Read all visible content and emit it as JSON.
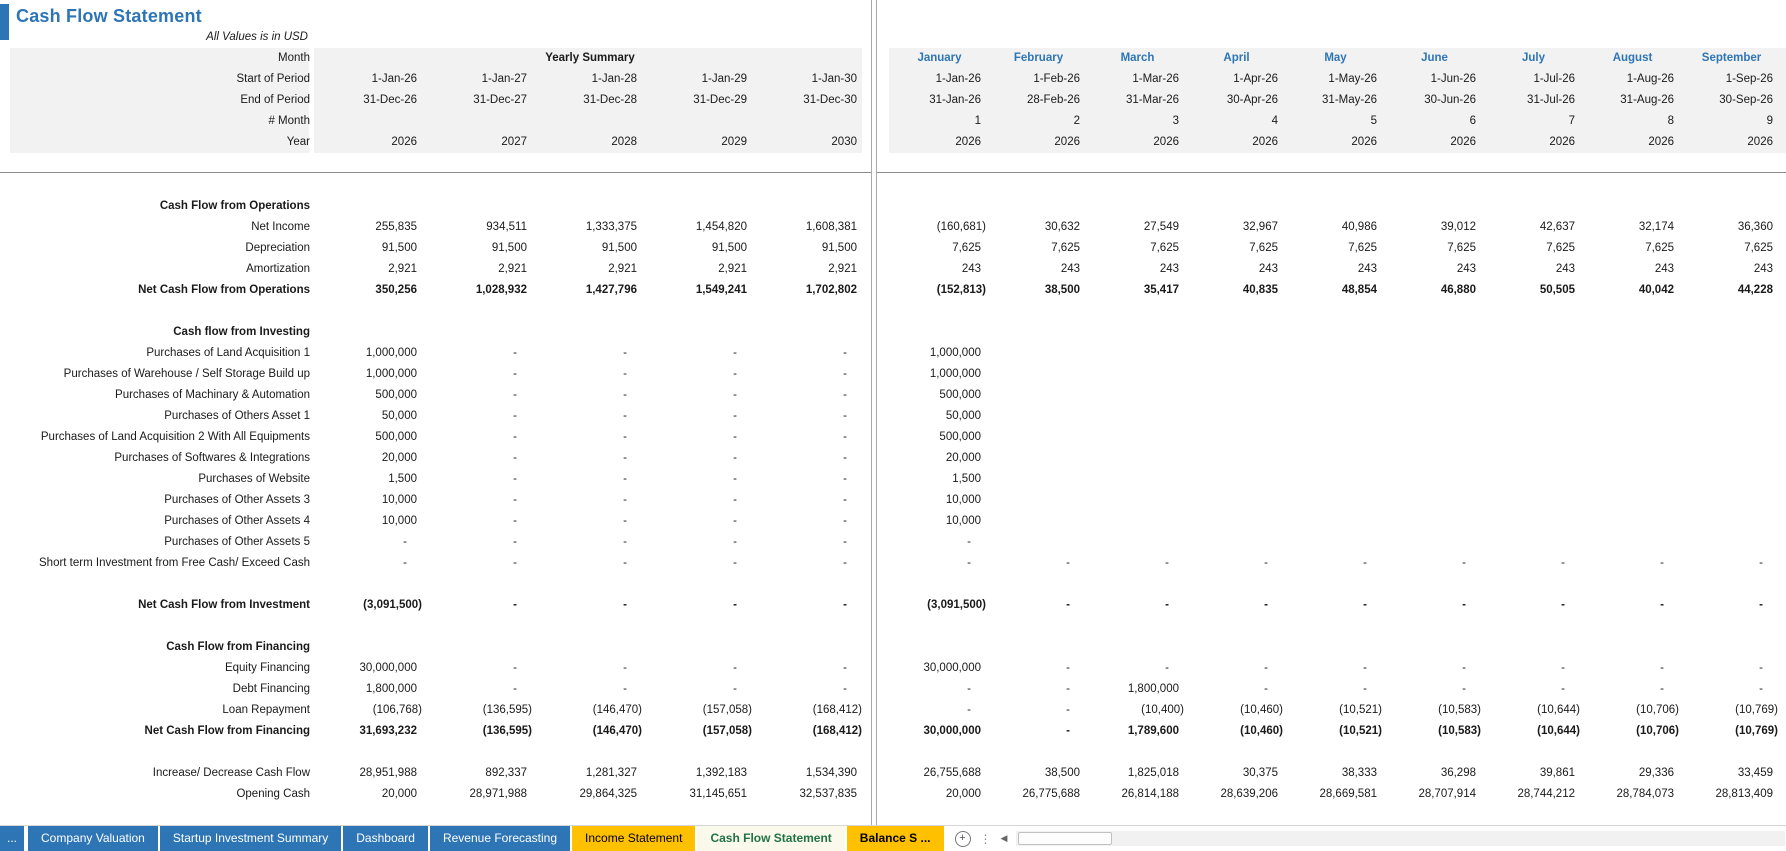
{
  "title": "Cash Flow Statement",
  "subtitle": "All Values is in USD",
  "colors": {
    "accent_blue": "#2E75B6",
    "tab_yellow": "#FFC000",
    "active_tab_text": "#217346",
    "header_band": "#F2F2F2",
    "pane_separator": "#ABABAB"
  },
  "header": {
    "row_labels": [
      "Month",
      "Start of Period",
      "End of Period",
      "# Month",
      "Year"
    ],
    "yearly": {
      "group_label": "Yearly Summary",
      "start": [
        "1-Jan-26",
        "1-Jan-27",
        "1-Jan-28",
        "1-Jan-29",
        "1-Jan-30"
      ],
      "end": [
        "31-Dec-26",
        "31-Dec-27",
        "31-Dec-28",
        "31-Dec-29",
        "31-Dec-30"
      ],
      "num": [
        "",
        "",
        "",
        "",
        ""
      ],
      "year": [
        "2026",
        "2027",
        "2028",
        "2029",
        "2030"
      ]
    },
    "monthly": {
      "months": [
        "January",
        "February",
        "March",
        "April",
        "May",
        "June",
        "July",
        "August",
        "September"
      ],
      "start": [
        "1-Jan-26",
        "1-Feb-26",
        "1-Mar-26",
        "1-Apr-26",
        "1-May-26",
        "1-Jun-26",
        "1-Jul-26",
        "1-Aug-26",
        "1-Sep-26"
      ],
      "end": [
        "31-Jan-26",
        "28-Feb-26",
        "31-Mar-26",
        "30-Apr-26",
        "31-May-26",
        "30-Jun-26",
        "31-Jul-26",
        "31-Aug-26",
        "30-Sep-26"
      ],
      "num": [
        "1",
        "2",
        "3",
        "4",
        "5",
        "6",
        "7",
        "8",
        "9"
      ],
      "year": [
        "2026",
        "2026",
        "2026",
        "2026",
        "2026",
        "2026",
        "2026",
        "2026",
        "2026"
      ]
    }
  },
  "rows": [
    {
      "style": "section",
      "label": "Cash Flow from Operations"
    },
    {
      "style": "item",
      "label": "Net Income",
      "yearly": [
        "255,835",
        "934,511",
        "1,333,375",
        "1,454,820",
        "1,608,381"
      ],
      "monthly": [
        "(160,681)",
        "30,632",
        "27,549",
        "32,967",
        "40,986",
        "39,012",
        "42,637",
        "32,174",
        "36,360"
      ]
    },
    {
      "style": "item",
      "label": "Depreciation",
      "yearly": [
        "91,500",
        "91,500",
        "91,500",
        "91,500",
        "91,500"
      ],
      "monthly": [
        "7,625",
        "7,625",
        "7,625",
        "7,625",
        "7,625",
        "7,625",
        "7,625",
        "7,625",
        "7,625"
      ]
    },
    {
      "style": "item",
      "label": "Amortization",
      "yearly": [
        "2,921",
        "2,921",
        "2,921",
        "2,921",
        "2,921"
      ],
      "monthly": [
        "243",
        "243",
        "243",
        "243",
        "243",
        "243",
        "243",
        "243",
        "243"
      ]
    },
    {
      "style": "total",
      "label": "Net Cash Flow from Operations",
      "yearly": [
        "350,256",
        "1,028,932",
        "1,427,796",
        "1,549,241",
        "1,702,802"
      ],
      "monthly": [
        "(152,813)",
        "38,500",
        "35,417",
        "40,835",
        "48,854",
        "46,880",
        "50,505",
        "40,042",
        "44,228"
      ]
    },
    {
      "style": "spacer",
      "label": ""
    },
    {
      "style": "section",
      "label": "Cash flow from Investing"
    },
    {
      "style": "item",
      "label": "Purchases of Land Acquisition 1",
      "yearly": [
        "1,000,000",
        "-",
        "-",
        "-",
        "-"
      ],
      "monthly": [
        "1,000,000",
        "",
        "",
        "",
        "",
        "",
        "",
        "",
        ""
      ]
    },
    {
      "style": "item",
      "label": "Purchases of Warehouse / Self Storage Build up",
      "yearly": [
        "1,000,000",
        "-",
        "-",
        "-",
        "-"
      ],
      "monthly": [
        "1,000,000",
        "",
        "",
        "",
        "",
        "",
        "",
        "",
        ""
      ]
    },
    {
      "style": "item",
      "label": "Purchases of Machinary & Automation",
      "yearly": [
        "500,000",
        "-",
        "-",
        "-",
        "-"
      ],
      "monthly": [
        "500,000",
        "",
        "",
        "",
        "",
        "",
        "",
        "",
        ""
      ]
    },
    {
      "style": "item",
      "label": "Purchases of Others Asset 1",
      "yearly": [
        "50,000",
        "-",
        "-",
        "-",
        "-"
      ],
      "monthly": [
        "50,000",
        "",
        "",
        "",
        "",
        "",
        "",
        "",
        ""
      ]
    },
    {
      "style": "item",
      "label": "Purchases of Land Acquisition 2 With All Equipments",
      "yearly": [
        "500,000",
        "-",
        "-",
        "-",
        "-"
      ],
      "monthly": [
        "500,000",
        "",
        "",
        "",
        "",
        "",
        "",
        "",
        ""
      ]
    },
    {
      "style": "item",
      "label": "Purchases of Softwares & Integrations",
      "yearly": [
        "20,000",
        "-",
        "-",
        "-",
        "-"
      ],
      "monthly": [
        "20,000",
        "",
        "",
        "",
        "",
        "",
        "",
        "",
        ""
      ]
    },
    {
      "style": "item",
      "label": "Purchases of Website",
      "yearly": [
        "1,500",
        "-",
        "-",
        "-",
        "-"
      ],
      "monthly": [
        "1,500",
        "",
        "",
        "",
        "",
        "",
        "",
        "",
        ""
      ]
    },
    {
      "style": "item",
      "label": "Purchases of Other Assets 3",
      "yearly": [
        "10,000",
        "-",
        "-",
        "-",
        "-"
      ],
      "monthly": [
        "10,000",
        "",
        "",
        "",
        "",
        "",
        "",
        "",
        ""
      ]
    },
    {
      "style": "item",
      "label": "Purchases of Other Assets 4",
      "yearly": [
        "10,000",
        "-",
        "-",
        "-",
        "-"
      ],
      "monthly": [
        "10,000",
        "",
        "",
        "",
        "",
        "",
        "",
        "",
        ""
      ]
    },
    {
      "style": "item",
      "label": "Purchases of Other Assets 5",
      "yearly": [
        "-",
        "-",
        "-",
        "-",
        "-"
      ],
      "monthly": [
        "-",
        "",
        "",
        "",
        "",
        "",
        "",
        "",
        ""
      ]
    },
    {
      "style": "item",
      "label": "Short term Investment from Free Cash/ Exceed Cash",
      "yearly": [
        "-",
        "-",
        "-",
        "-",
        "-"
      ],
      "monthly": [
        "-",
        "-",
        "-",
        "-",
        "-",
        "-",
        "-",
        "-",
        "-"
      ]
    },
    {
      "style": "spacer",
      "label": ""
    },
    {
      "style": "total",
      "label": "Net Cash Flow from Investment",
      "yearly": [
        "(3,091,500)",
        "-",
        "-",
        "-",
        "-"
      ],
      "monthly": [
        "(3,091,500)",
        "-",
        "-",
        "-",
        "-",
        "-",
        "-",
        "-",
        "-"
      ]
    },
    {
      "style": "spacer",
      "label": ""
    },
    {
      "style": "section",
      "label": "Cash Flow from Financing"
    },
    {
      "style": "item",
      "label": "Equity Financing",
      "yearly": [
        "30,000,000",
        "-",
        "-",
        "-",
        "-"
      ],
      "monthly": [
        "30,000,000",
        "-",
        "-",
        "-",
        "-",
        "-",
        "-",
        "-",
        "-"
      ]
    },
    {
      "style": "item",
      "label": "Debt Financing",
      "yearly": [
        "1,800,000",
        "-",
        "-",
        "-",
        "-"
      ],
      "monthly": [
        "-",
        "-",
        "1,800,000",
        "-",
        "-",
        "-",
        "-",
        "-",
        "-"
      ]
    },
    {
      "style": "item",
      "label": "Loan Repayment",
      "yearly": [
        "(106,768)",
        "(136,595)",
        "(146,470)",
        "(157,058)",
        "(168,412)"
      ],
      "monthly": [
        "-",
        "-",
        "(10,400)",
        "(10,460)",
        "(10,521)",
        "(10,583)",
        "(10,644)",
        "(10,706)",
        "(10,769)"
      ]
    },
    {
      "style": "total",
      "label": "Net Cash Flow from Financing",
      "yearly": [
        "31,693,232",
        "(136,595)",
        "(146,470)",
        "(157,058)",
        "(168,412)"
      ],
      "monthly": [
        "30,000,000",
        "-",
        "1,789,600",
        "(10,460)",
        "(10,521)",
        "(10,583)",
        "(10,644)",
        "(10,706)",
        "(10,769)"
      ]
    },
    {
      "style": "spacer",
      "label": ""
    },
    {
      "style": "item",
      "label": "Increase/ Decrease Cash Flow",
      "yearly": [
        "28,951,988",
        "892,337",
        "1,281,327",
        "1,392,183",
        "1,534,390"
      ],
      "monthly": [
        "26,755,688",
        "38,500",
        "1,825,018",
        "30,375",
        "38,333",
        "36,298",
        "39,861",
        "29,336",
        "33,459"
      ]
    },
    {
      "style": "item",
      "label": "Opening Cash",
      "yearly": [
        "20,000",
        "28,971,988",
        "29,864,325",
        "31,145,651",
        "32,537,835"
      ],
      "monthly": [
        "20,000",
        "26,775,688",
        "26,814,188",
        "28,639,206",
        "28,669,581",
        "28,707,914",
        "28,744,212",
        "28,784,073",
        "28,813,409"
      ]
    }
  ],
  "sheet_tabs": {
    "overflow_left_label": "...",
    "tabs": [
      {
        "label": "Company Valuation",
        "style": "blue"
      },
      {
        "label": "Startup Investment Summary",
        "style": "blue"
      },
      {
        "label": "Dashboard",
        "style": "blue"
      },
      {
        "label": "Revenue Forecasting",
        "style": "blue"
      },
      {
        "label": "Income Statement",
        "style": "yellow"
      },
      {
        "label": "Cash Flow Statement",
        "style": "active"
      },
      {
        "label": "Balance S ...",
        "style": "yellow-bold"
      }
    ],
    "add_sheet_icon": "plus-circle-icon",
    "splitter_icon": "vertical-dots-icon",
    "scroll_left_icon": "left-arrow-icon",
    "scroll_left_glyph": "◀",
    "splitter_glyph": "⋮",
    "add_glyph": "+"
  }
}
